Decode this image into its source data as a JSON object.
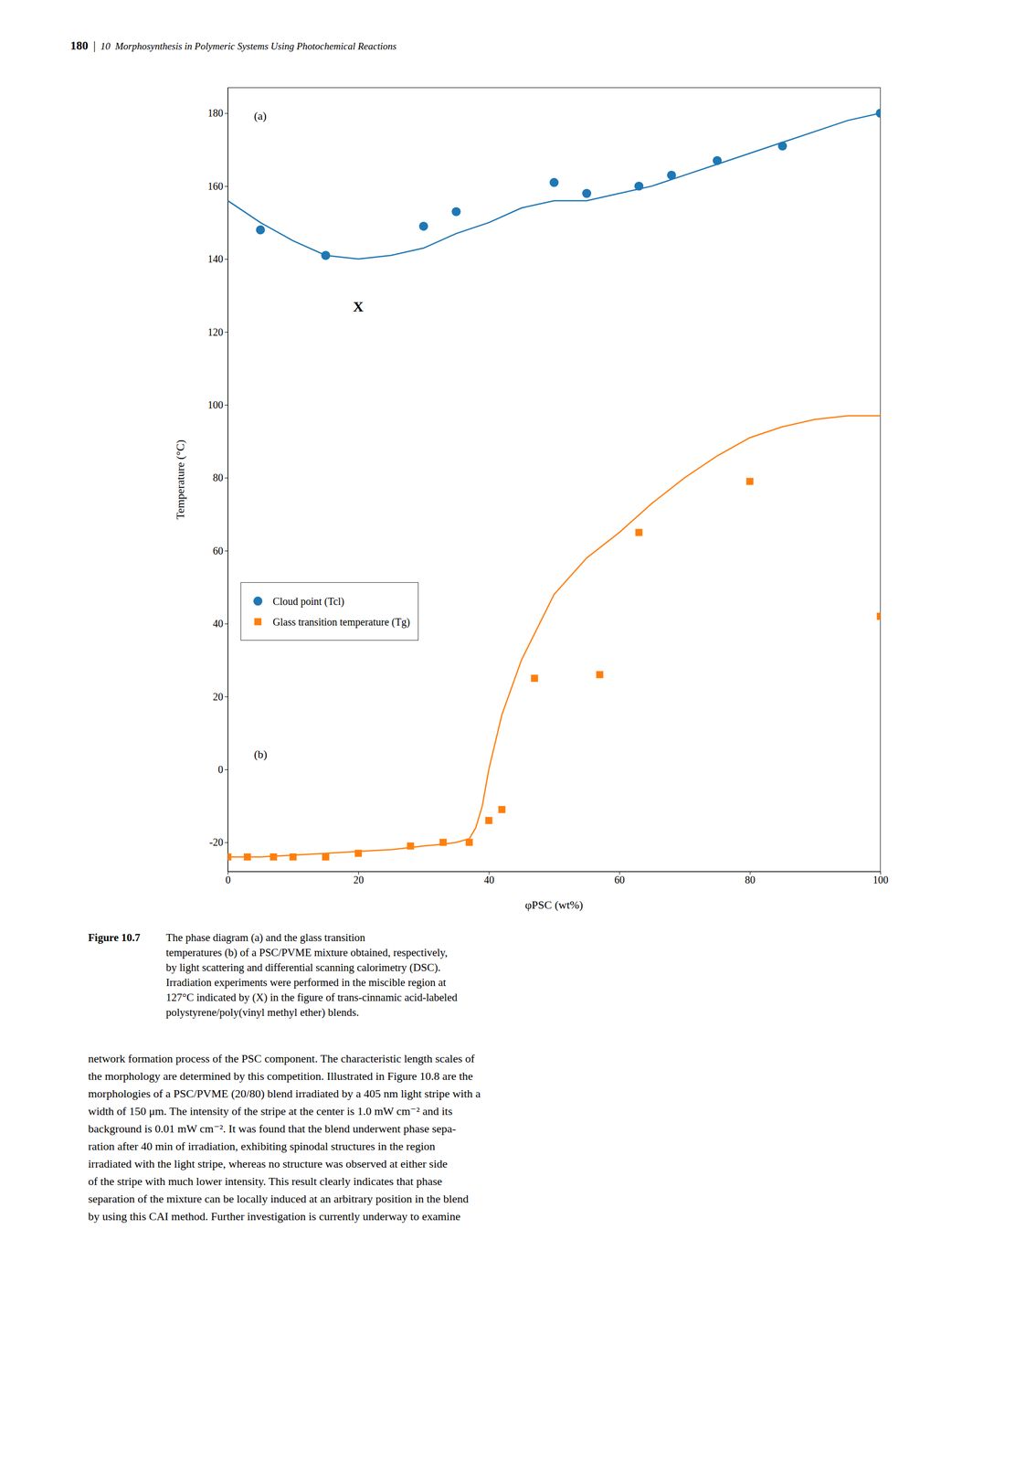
{
  "chart_data": {
    "type": "line",
    "xlabel": "φPSC (wt%)",
    "ylabel": "Temperature (°C)",
    "xlim": [
      0,
      100
    ],
    "ylim": [
      -28,
      187
    ],
    "xticks": [
      0,
      20,
      40,
      60,
      80,
      100
    ],
    "yticks": [
      -20,
      0,
      20,
      40,
      60,
      80,
      100,
      120,
      140,
      160,
      180
    ],
    "grid": false,
    "legend": "lower left",
    "series": [
      {
        "type": "line",
        "x": [
          0,
          5,
          10,
          15,
          20,
          25,
          30,
          35,
          40,
          45,
          50,
          55,
          60,
          65,
          70,
          75,
          80,
          85,
          90,
          95,
          100
        ],
        "values": [
          156,
          150,
          145,
          141,
          140,
          141,
          143,
          147,
          150,
          154,
          156,
          156,
          158,
          160,
          163,
          166,
          169,
          172,
          175,
          178,
          180
        ]
      },
      {
        "name": "Cloud point (Tcl)",
        "type": "scatter",
        "marker": "circle",
        "x": [
          5,
          15,
          30,
          35,
          50,
          55,
          63,
          68,
          75,
          85,
          100
        ],
        "values": [
          148,
          141,
          149,
          153,
          161,
          158,
          160,
          163,
          167,
          171,
          180
        ]
      },
      {
        "type": "line",
        "x": [
          0,
          5,
          10,
          15,
          20,
          25,
          30,
          33,
          35,
          37,
          38,
          39,
          40,
          42,
          45,
          50,
          55,
          60,
          65,
          70,
          75,
          80,
          85,
          90,
          95,
          100
        ],
        "values": [
          -24,
          -24,
          -23.5,
          -23,
          -22.5,
          -22,
          -21,
          -20.5,
          -20,
          -19,
          -16,
          -10,
          0,
          15,
          30,
          48,
          58,
          65,
          73,
          80,
          86,
          91,
          94,
          96,
          97,
          97
        ]
      },
      {
        "name": "Glass transition temperature (Tg)",
        "type": "scatter",
        "marker": "square",
        "x": [
          0,
          3,
          7,
          10,
          15,
          20,
          28,
          33,
          37,
          40,
          42,
          47,
          57,
          63,
          80,
          100
        ],
        "values": [
          -24,
          -24,
          -24,
          -24,
          -24,
          -23,
          -21,
          -20,
          -20,
          -14,
          -11,
          25,
          26,
          65,
          79,
          42
        ]
      }
    ],
    "annotations": [
      {
        "text": "X",
        "x": 20,
        "y": 127
      },
      {
        "text": "(a)"
      },
      {
        "text": "(b)"
      }
    ]
  },
  "page": {
    "header_page": "180",
    "header_separator": "|",
    "header_text": "10  Morphosynthesis in Polymeric Systems Using Photochemical Reactions",
    "caption_bold": "Figure 10.7",
    "caption_rest": [
      "The phase diagram (a) and the glass transition",
      "temperatures (b) of a PSC/PVME mixture obtained, respectively,",
      "by light scattering and differential scanning calorimetry (DSC).",
      "Irradiation experiments were performed in the miscible region at",
      "127°C indicated by (X) in the figure of trans-cinnamic acid-labeled",
      "polystyrene/poly(vinyl methyl ether) blends."
    ],
    "body_text": [
      "network formation process of the PSC component. The characteristic length scales of",
      "the morphology are determined by this competition. Illustrated in Figure 10.8 are the",
      "morphologies of a PSC/PVME (20/80) blend irradiated by a 405 nm light stripe with a",
      "width of 150 μm. The intensity of the stripe at the center is 1.0 mW cm⁻² and its",
      "background is 0.01 mW cm⁻². It was found that the blend underwent phase sepa-",
      "ration after 40 min of irradiation, exhibiting spinodal structures in the region",
      "irradiated with the light stripe, whereas no structure was observed at either side",
      "of the stripe with much lower intensity. This result clearly indicates that phase",
      "separation of the mixture can be locally induced at an arbitrary position in the blend",
      "by using this CAI method. Further investigation is currently underway to examine"
    ]
  }
}
